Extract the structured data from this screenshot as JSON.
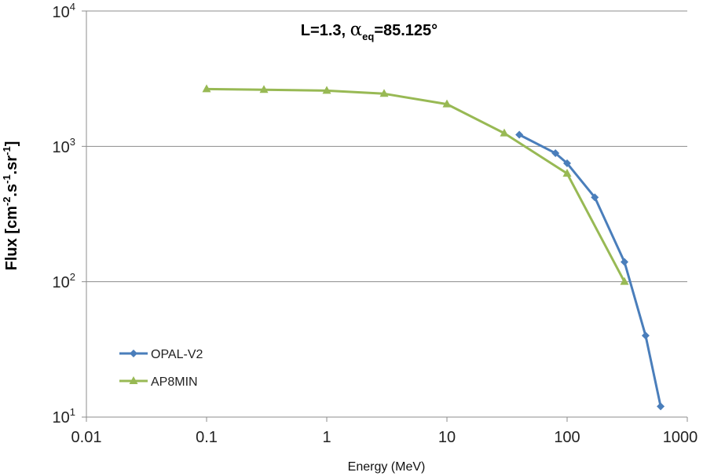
{
  "chart_data": {
    "type": "line",
    "title": {
      "main": "L=1.3, ",
      "alpha": "α",
      "alpha_sub": "eq",
      "value": "=85.125°"
    },
    "xlabel": "Energy (MeV)",
    "ylabel": {
      "base": "Flux [cm",
      "sup1": "-2",
      "mid1": ".s",
      "sup2": "-1",
      "mid2": ".sr",
      "sup3": "-1",
      "end": "]"
    },
    "x_scale": "log",
    "y_scale": "log",
    "xlim": [
      0.01,
      1000
    ],
    "ylim": [
      10,
      10000
    ],
    "x_tick_labels": [
      "0.01",
      "0.1",
      "1",
      "10",
      "100",
      "1000"
    ],
    "y_tick_labels": [
      {
        "base": "10",
        "exp": "1",
        "value": 10
      },
      {
        "base": "10",
        "exp": "2",
        "value": 100
      },
      {
        "base": "10",
        "exp": "3",
        "value": 1000
      },
      {
        "base": "10",
        "exp": "4",
        "value": 10000
      }
    ],
    "grid": "horizontal",
    "legend_position": "bottom-left",
    "series": [
      {
        "name": "OPAL-V2",
        "color": "#4a7ebb",
        "marker": "diamond",
        "x": [
          40,
          80,
          100,
          170,
          300,
          450,
          600
        ],
        "y": [
          1220,
          890,
          750,
          420,
          140,
          40,
          12
        ]
      },
      {
        "name": "AP8MIN",
        "color": "#98b954",
        "marker": "triangle",
        "x": [
          0.1,
          0.3,
          1,
          3,
          10,
          30,
          100,
          300
        ],
        "y": [
          2650,
          2620,
          2580,
          2450,
          2050,
          1250,
          630,
          100
        ]
      }
    ]
  }
}
